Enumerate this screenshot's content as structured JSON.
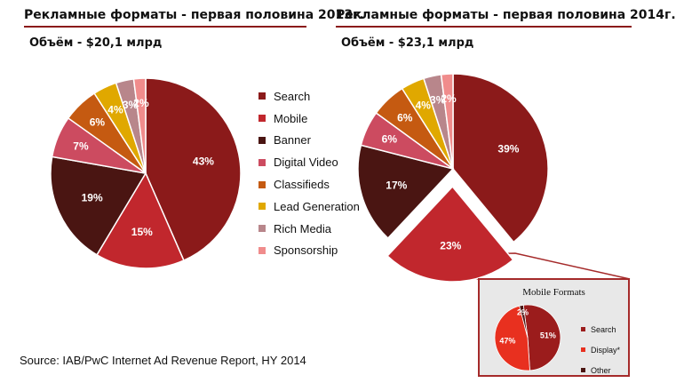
{
  "header_left": {
    "title": "Рекламные форматы - первая половина 2013г.",
    "volume": "Объём - $20,1 млрд"
  },
  "header_right": {
    "title": "Рекламные форматы - первая половина 2014г.",
    "volume": "Объём - $23,1 млрд"
  },
  "legend": {
    "items": [
      {
        "label": "Search",
        "color": "#8b1a1a"
      },
      {
        "label": "Mobile",
        "color": "#c1272d"
      },
      {
        "label": "Banner",
        "color": "#4a1512"
      },
      {
        "label": "Digital Video",
        "color": "#cc4b60"
      },
      {
        "label": "Classifieds",
        "color": "#c55a11"
      },
      {
        "label": "Lead Generation",
        "color": "#e0a800"
      },
      {
        "label": "Rich Media",
        "color": "#b8868b"
      },
      {
        "label": "Sponsorship",
        "color": "#f08c8c"
      }
    ]
  },
  "source": "Source: IAB/PwC Internet Ad Revenue Report, HY 2014",
  "chart_data": [
    {
      "type": "pie",
      "title": "Рекламные форматы - первая половина 2013г.",
      "subtitle": "Объём - $20,1 млрд",
      "categories": [
        "Search",
        "Mobile",
        "Banner",
        "Digital Video",
        "Classifieds",
        "Lead Generation",
        "Rich Media",
        "Sponsorship"
      ],
      "values": [
        43,
        15,
        19,
        7,
        6,
        4,
        3,
        2
      ],
      "labels": [
        "43%",
        "15%",
        "19%",
        "7%",
        "6%",
        "4%",
        "3%",
        "2%"
      ],
      "colors": [
        "#8b1a1a",
        "#c1272d",
        "#4a1512",
        "#cc4b60",
        "#c55a11",
        "#e0a800",
        "#b8868b",
        "#f08c8c"
      ]
    },
    {
      "type": "pie",
      "title": "Рекламные форматы - первая половина 2014г.",
      "subtitle": "Объём - $23,1 млрд",
      "categories": [
        "Search",
        "Mobile",
        "Banner",
        "Digital Video",
        "Classifieds",
        "Lead Generation",
        "Rich Media",
        "Sponsorship"
      ],
      "values": [
        39,
        23,
        17,
        6,
        6,
        4,
        3,
        2
      ],
      "labels": [
        "39%",
        "23%",
        "17%",
        "6%",
        "6%",
        "4%",
        "3%",
        "2%"
      ],
      "colors": [
        "#8b1a1a",
        "#c1272d",
        "#4a1512",
        "#cc4b60",
        "#c55a11",
        "#e0a800",
        "#b8868b",
        "#f08c8c"
      ],
      "exploded": "Mobile"
    },
    {
      "type": "pie",
      "title": "Mobile Formats",
      "categories": [
        "Search",
        "Display*",
        "Other"
      ],
      "values": [
        51,
        47,
        2
      ],
      "labels": [
        "51%",
        "47%",
        "2%"
      ],
      "colors": [
        "#9b1c1c",
        "#e8301f",
        "#4a1512"
      ]
    }
  ]
}
